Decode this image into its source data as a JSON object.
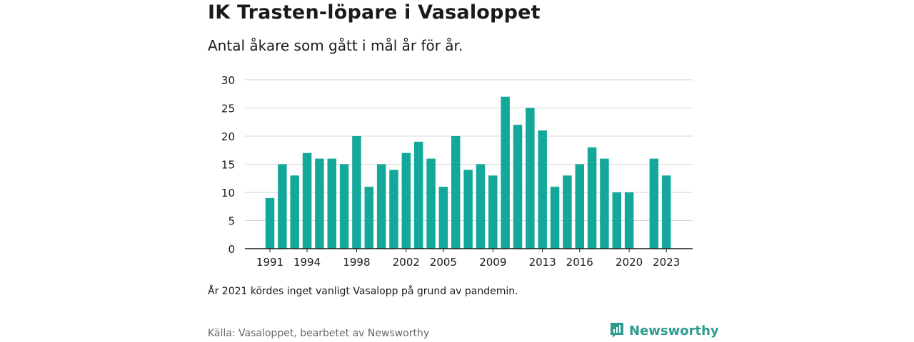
{
  "title": "IK Trasten-löpare i Vasaloppet",
  "subtitle": "Antal åkare som gått i mål år för år.",
  "note": "År 2021 kördes inget vanligt Vasalopp på grund av pandemin.",
  "source": "Källa: Vasaloppet, bearbetet av Newsworthy",
  "brand": {
    "name": "Newsworthy",
    "color": "#2f9a8e",
    "icon": "newsworthy-logo-icon"
  },
  "chart_data": {
    "type": "bar",
    "title": "IK Trasten-löpare i Vasaloppet",
    "subtitle": "Antal åkare som gått i mål år för år.",
    "xlabel": "",
    "ylabel": "",
    "ylim": [
      0,
      30
    ],
    "yticks": [
      "0",
      "5",
      "10",
      "15",
      "20",
      "25",
      "30"
    ],
    "xticks": [
      "1991",
      "1994",
      "1998",
      "2002",
      "2005",
      "2009",
      "2013",
      "2016",
      "2020",
      "2023"
    ],
    "grid": true,
    "bar_color": "#14a89a",
    "categories": [
      1991,
      1992,
      1993,
      1994,
      1995,
      1996,
      1997,
      1998,
      1999,
      2000,
      2001,
      2002,
      2003,
      2004,
      2005,
      2006,
      2007,
      2008,
      2009,
      2010,
      2011,
      2012,
      2013,
      2014,
      2015,
      2016,
      2017,
      2018,
      2019,
      2020,
      2021,
      2022,
      2023
    ],
    "values": [
      9,
      15,
      13,
      17,
      16,
      16,
      15,
      20,
      11,
      15,
      14,
      17,
      19,
      16,
      11,
      20,
      14,
      15,
      13,
      27,
      22,
      25,
      21,
      11,
      13,
      15,
      18,
      16,
      10,
      10,
      null,
      16,
      13
    ]
  }
}
